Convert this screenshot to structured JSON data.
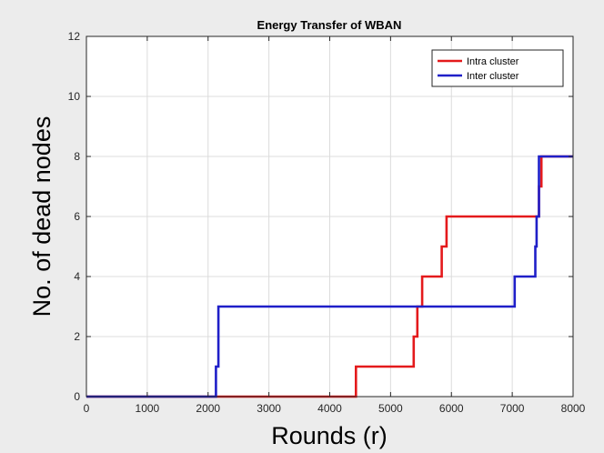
{
  "chart_data": {
    "type": "line",
    "title": "Energy Transfer of WBAN",
    "xlabel": "Rounds (r)",
    "ylabel": "No. of dead nodes",
    "xlim": [
      0,
      8000
    ],
    "ylim": [
      0,
      12
    ],
    "xticks": [
      0,
      1000,
      2000,
      3000,
      4000,
      5000,
      6000,
      7000,
      8000
    ],
    "yticks": [
      0,
      2,
      4,
      6,
      8,
      10,
      12
    ],
    "grid": true,
    "legend_position": "top-right",
    "series": [
      {
        "name": "Intra cluster",
        "color": "#e41a1c",
        "x": [
          0,
          4430,
          4430,
          5380,
          5380,
          5440,
          5440,
          5520,
          5520,
          5840,
          5840,
          5920,
          5920,
          7440,
          7440,
          7480,
          7480,
          8000
        ],
        "y": [
          0,
          0,
          1,
          1,
          2,
          2,
          3,
          3,
          4,
          4,
          5,
          5,
          6,
          6,
          7,
          7,
          8,
          8
        ]
      },
      {
        "name": "Inter cluster",
        "color": "#1f1fc8",
        "x": [
          0,
          2130,
          2130,
          2170,
          2170,
          7040,
          7040,
          7380,
          7380,
          7400,
          7400,
          7440,
          7440,
          8000
        ],
        "y": [
          0,
          0,
          1,
          1,
          3,
          3,
          4,
          4,
          5,
          5,
          6,
          6,
          8,
          8
        ]
      }
    ]
  }
}
